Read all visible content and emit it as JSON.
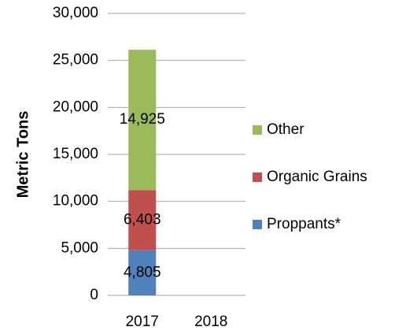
{
  "chart_data": {
    "type": "stacked_bar",
    "y_label": "Metric Tons",
    "categories": [
      "2017",
      "2018"
    ],
    "series": [
      {
        "name": "Proppants*",
        "color": "#4f81bd",
        "values": [
          4805,
          null
        ],
        "value_labels": [
          "4,805",
          null
        ]
      },
      {
        "name": "Organic Grains",
        "color": "#c0504d",
        "values": [
          6403,
          null
        ],
        "value_labels": [
          "6,403",
          null
        ]
      },
      {
        "name": "Other",
        "color": "#9bbb59",
        "values": [
          14925,
          null
        ],
        "value_labels": [
          "14,925",
          null
        ]
      }
    ],
    "ylim": [
      0,
      30000
    ],
    "yticks": [
      0,
      {
        "value": 5000,
        "label": "5,000"
      },
      {
        "value": 10000,
        "label": "10,000"
      },
      {
        "value": 15000,
        "label": "15,000"
      },
      {
        "value": 20000,
        "label": "20,000"
      },
      {
        "value": 25000,
        "label": "25,000"
      },
      {
        "value": 30000,
        "label": "30,000"
      }
    ],
    "grid": true,
    "legend": "right"
  }
}
